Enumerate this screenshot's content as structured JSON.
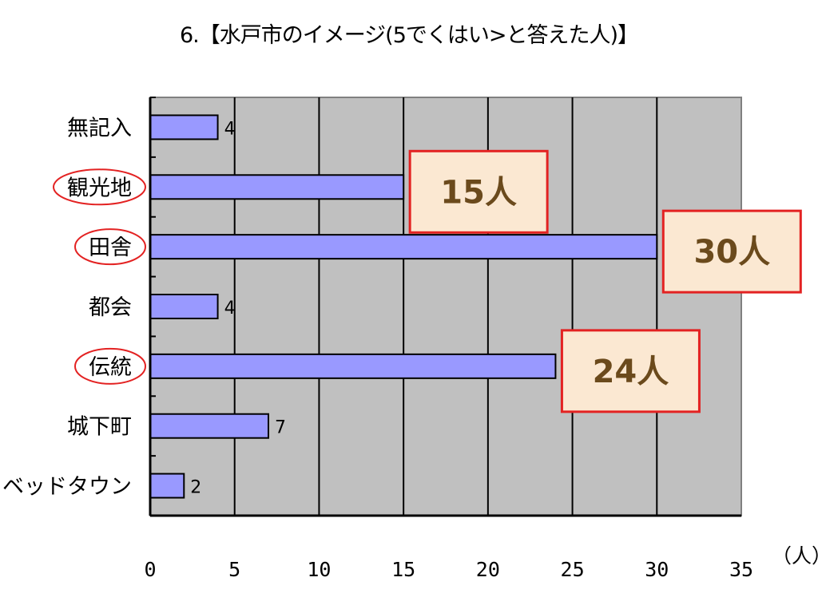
{
  "chart_data": {
    "type": "bar",
    "orientation": "horizontal",
    "title": "6.【水戸市のイメージ(5でくはい>と答えた人)】",
    "xlabel": "（人）",
    "ylabel": "",
    "categories": [
      "無記入",
      "観光地",
      "田舎",
      "都会",
      "伝統",
      "城下町",
      "ベッドタウン"
    ],
    "values": [
      4,
      15,
      30,
      4,
      24,
      7,
      2
    ],
    "data_labels": [
      "4",
      "",
      "",
      "4",
      "",
      "7",
      "2"
    ],
    "xlim": [
      0,
      35
    ],
    "x_ticks": [
      0,
      5,
      10,
      15,
      20,
      25,
      30,
      35
    ],
    "x_tick_labels": [
      "0",
      "5",
      "10",
      "15",
      "20",
      "25",
      "30",
      "35"
    ],
    "grid": true,
    "legend": "none",
    "circled_categories": [
      "観光地",
      "田舎",
      "伝統"
    ],
    "callouts": [
      {
        "category": "観光地",
        "text": "15人"
      },
      {
        "category": "田舎",
        "text": "30人"
      },
      {
        "category": "伝統",
        "text": "24人"
      }
    ],
    "colors": {
      "bar_fill": "#9999ff",
      "plot_background": "#c0c0c0",
      "callout_fill": "#fbe8d2",
      "callout_border": "#e32222",
      "callout_text": "#6b4a1c",
      "circle_stroke": "#e32222"
    }
  }
}
